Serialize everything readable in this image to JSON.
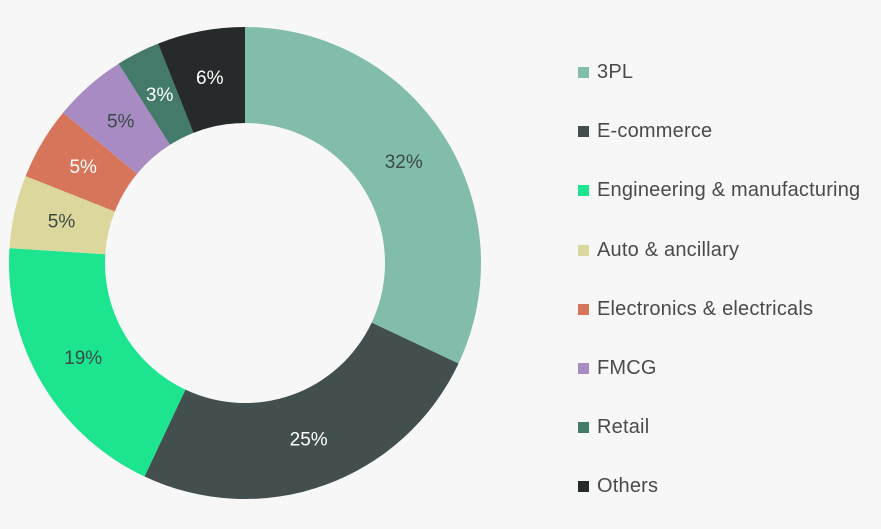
{
  "chart_data": {
    "type": "pie",
    "donut": true,
    "title": "",
    "categories": [
      "3PL",
      "E-commerce",
      "Engineering & manufacturing",
      "Auto & ancillary",
      "Electronics & electricals",
      "FMCG",
      "Retail",
      "Others"
    ],
    "values": [
      32,
      25,
      19,
      5,
      5,
      5,
      3,
      6
    ],
    "value_labels": [
      "32%",
      "25%",
      "19%",
      "5%",
      "5%",
      "5%",
      "3%",
      "6%"
    ],
    "colors": [
      "#82bdac",
      "#434f4f",
      "#1de48f",
      "#dcd89d",
      "#d6755a",
      "#a98bc4",
      "#447a6a",
      "#262a2b"
    ],
    "label_colors": [
      "#3a4a44",
      "#ffffff",
      "#3a4a44",
      "#3a4a44",
      "#ffffff",
      "#3a4a44",
      "#ffffff",
      "#ffffff"
    ],
    "legend_position": "right"
  }
}
